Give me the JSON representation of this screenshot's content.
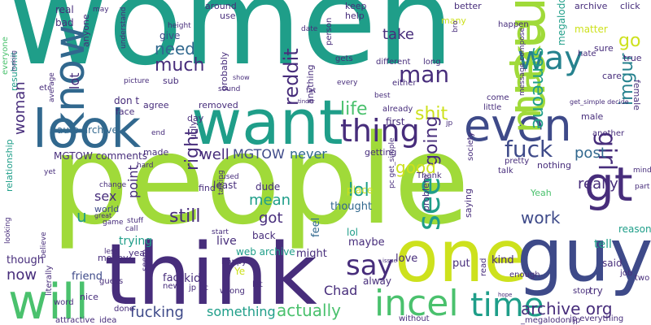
{
  "palette": {
    "teal": "#1f9e89",
    "lime": "#a0da39",
    "green": "#4ac16d",
    "indigo": "#3e4a89",
    "purple": "#472d7b",
    "blue": "#31688e",
    "cyan": "#26828e",
    "yellow": "#cde11d"
  },
  "words": [
    {
      "text": "women",
      "color": "teal"
    },
    {
      "text": "people",
      "color": "lime"
    },
    {
      "text": "think",
      "color": "purple"
    },
    {
      "text": "one",
      "color": "yellow"
    },
    {
      "text": "guy",
      "color": "indigo"
    },
    {
      "text": "want",
      "color": "teal"
    },
    {
      "text": "look",
      "color": "blue"
    },
    {
      "text": "men",
      "color": "lime"
    },
    {
      "text": "will",
      "color": "green"
    },
    {
      "text": "gt",
      "color": "purple"
    },
    {
      "text": "know",
      "color": "blue"
    },
    {
      "text": "even",
      "color": "indigo"
    },
    {
      "text": "make",
      "color": "lime"
    },
    {
      "text": "time",
      "color": "teal"
    },
    {
      "text": "incel",
      "color": "green"
    },
    {
      "text": "way",
      "color": "cyan"
    },
    {
      "text": "thing",
      "color": "purple"
    },
    {
      "text": "fuck",
      "color": "indigo"
    },
    {
      "text": "see",
      "color": "teal"
    },
    {
      "text": "girl",
      "color": "purple"
    },
    {
      "text": "say",
      "color": "purple"
    },
    {
      "text": "man",
      "color": "purple"
    },
    {
      "text": "someone",
      "color": "teal"
    },
    {
      "text": "shit",
      "color": "yellow"
    },
    {
      "text": "life",
      "color": "green"
    },
    {
      "text": "going",
      "color": "purple"
    },
    {
      "text": "reddit",
      "color": "purple"
    },
    {
      "text": "much",
      "color": "purple"
    },
    {
      "text": "need",
      "color": "blue"
    },
    {
      "text": "take",
      "color": "purple"
    },
    {
      "text": "lol",
      "color": "teal"
    },
    {
      "text": "good",
      "color": "yellow"
    },
    {
      "text": "right",
      "color": "purple"
    },
    {
      "text": "really",
      "color": "purple"
    },
    {
      "text": "work",
      "color": "indigo"
    },
    {
      "text": "post",
      "color": "blue"
    },
    {
      "text": "still",
      "color": "purple"
    },
    {
      "text": "well",
      "color": "purple"
    },
    {
      "text": "MGTOW",
      "color": "indigo"
    },
    {
      "text": "never",
      "color": "blue"
    },
    {
      "text": "imgur",
      "color": "cyan"
    },
    {
      "text": "go",
      "color": "yellow"
    },
    {
      "text": "archive org",
      "color": "purple"
    },
    {
      "text": "something",
      "color": "teal"
    },
    {
      "text": "actually",
      "color": "green"
    },
    {
      "text": "fucking",
      "color": "indigo"
    },
    {
      "text": "woman",
      "color": "purple"
    },
    {
      "text": "mean",
      "color": "teal"
    },
    {
      "text": "got",
      "color": "purple"
    },
    {
      "text": "point",
      "color": "purple"
    },
    {
      "text": "sex",
      "color": "purple"
    },
    {
      "text": "now",
      "color": "purple"
    },
    {
      "text": "lot",
      "color": "purple"
    },
    {
      "text": "Chad",
      "color": "purple"
    },
    {
      "text": "megalodon jp",
      "color": "teal"
    },
    {
      "text": "auto archive",
      "color": "blue"
    },
    {
      "text": "MGTOW comments",
      "color": "purple"
    },
    {
      "text": "relationship",
      "color": "teal"
    },
    {
      "text": "resubmit",
      "color": "teal"
    },
    {
      "text": "though",
      "color": "purple"
    },
    {
      "text": "u",
      "color": "teal"
    },
    {
      "text": "world",
      "color": "indigo"
    },
    {
      "text": "trying",
      "color": "teal"
    },
    {
      "text": "money",
      "color": "purple"
    },
    {
      "text": "friend",
      "color": "indigo"
    },
    {
      "text": "don t",
      "color": "purple"
    },
    {
      "text": "live",
      "color": "purple"
    },
    {
      "text": "web archive",
      "color": "teal"
    },
    {
      "text": "might",
      "color": "purple"
    },
    {
      "text": "feel",
      "color": "blue"
    },
    {
      "text": "thought",
      "color": "blue"
    },
    {
      "text": "love",
      "color": "purple"
    },
    {
      "text": "kind",
      "color": "purple"
    },
    {
      "text": "said",
      "color": "purple"
    },
    {
      "text": "tell",
      "color": "teal"
    },
    {
      "text": "reason",
      "color": "teal"
    },
    {
      "text": "put",
      "color": "purple"
    },
    {
      "text": "alway",
      "color": "purple"
    },
    {
      "text": "maybe",
      "color": "purple"
    },
    {
      "text": "kid",
      "color": "purple"
    },
    {
      "text": "fact",
      "color": "purple"
    },
    {
      "text": "dude",
      "color": "purple"
    },
    {
      "text": "least",
      "color": "purple"
    },
    {
      "text": "back",
      "color": "purple"
    },
    {
      "text": "place",
      "color": "yellow"
    },
    {
      "text": "lol",
      "color": "teal"
    },
    {
      "text": "first",
      "color": "purple"
    },
    {
      "text": "nothing",
      "color": "purple"
    },
    {
      "text": "Yeah",
      "color": "green"
    },
    {
      "text": "real",
      "color": "purple"
    },
    {
      "text": "bad",
      "color": "purple"
    },
    {
      "text": "give",
      "color": "indigo"
    },
    {
      "text": "around",
      "color": "purple"
    },
    {
      "text": "use",
      "color": "purple"
    },
    {
      "text": "keep",
      "color": "purple"
    },
    {
      "text": "help",
      "color": "purple"
    },
    {
      "text": "better",
      "color": "purple"
    },
    {
      "text": "many",
      "color": "yellow"
    },
    {
      "text": "archive",
      "color": "purple"
    },
    {
      "text": "click",
      "color": "purple"
    },
    {
      "text": "sure",
      "color": "purple"
    },
    {
      "text": "true",
      "color": "purple"
    },
    {
      "text": "care",
      "color": "purple"
    },
    {
      "text": "female",
      "color": "purple"
    },
    {
      "text": "male",
      "color": "purple"
    },
    {
      "text": "probably",
      "color": "purple"
    },
    {
      "text": "anything",
      "color": "purple"
    },
    {
      "text": "removed",
      "color": "purple"
    },
    {
      "text": "agree",
      "color": "purple"
    },
    {
      "text": "face",
      "color": "purple"
    },
    {
      "text": "day",
      "color": "purple"
    },
    {
      "text": "made",
      "color": "purple"
    },
    {
      "text": "find",
      "color": "purple"
    },
    {
      "text": "ugly",
      "color": "purple"
    },
    {
      "text": "getting",
      "color": "purple"
    },
    {
      "text": "problem",
      "color": "purple"
    },
    {
      "text": "saying",
      "color": "purple"
    },
    {
      "text": "everyone",
      "color": "green"
    },
    {
      "text": "anyone",
      "color": "purple"
    },
    {
      "text": "sub",
      "color": "purple"
    },
    {
      "text": "year",
      "color": "purple"
    },
    {
      "text": "etc",
      "color": "purple"
    },
    {
      "text": "hate",
      "color": "purple"
    },
    {
      "text": "happen",
      "color": "purple"
    },
    {
      "text": "matter",
      "color": "yellow"
    },
    {
      "text": "another",
      "color": "purple"
    },
    {
      "text": "already",
      "color": "purple"
    },
    {
      "text": "come",
      "color": "purple"
    },
    {
      "text": "little",
      "color": "purple"
    },
    {
      "text": "pretty",
      "color": "purple"
    },
    {
      "text": "talk",
      "color": "purple"
    },
    {
      "text": "stop",
      "color": "purple"
    },
    {
      "text": "try",
      "color": "purple"
    },
    {
      "text": "job",
      "color": "purple"
    },
    {
      "text": "two",
      "color": "purple"
    },
    {
      "text": "enough",
      "color": "purple"
    },
    {
      "text": "read",
      "color": "purple"
    },
    {
      "text": "_megalodon jp",
      "color": "purple"
    },
    {
      "text": "jp everything",
      "color": "purple"
    },
    {
      "text": "without",
      "color": "purple"
    },
    {
      "text": "attractive",
      "color": "purple"
    },
    {
      "text": "idea",
      "color": "purple"
    },
    {
      "text": "done",
      "color": "purple"
    },
    {
      "text": "nice",
      "color": "purple"
    },
    {
      "text": "guess",
      "color": "purple"
    },
    {
      "text": "seem",
      "color": "purple"
    },
    {
      "text": "new",
      "color": "purple"
    },
    {
      "text": "jp pc",
      "color": "purple"
    },
    {
      "text": "wrong",
      "color": "purple"
    },
    {
      "text": "happy",
      "color": "purple"
    },
    {
      "text": "let",
      "color": "purple"
    },
    {
      "text": "literally",
      "color": "purple"
    },
    {
      "text": "word",
      "color": "purple"
    },
    {
      "text": "Thank",
      "color": "purple"
    },
    {
      "text": "pc get_simple",
      "color": "purple"
    },
    {
      "text": "society",
      "color": "purple"
    },
    {
      "text": "best",
      "color": "purple"
    },
    {
      "text": "message compose",
      "color": "purple"
    },
    {
      "text": "get_simple decide",
      "color": "purple"
    },
    {
      "text": "different",
      "color": "purple"
    },
    {
      "text": "either",
      "color": "purple"
    },
    {
      "text": "long",
      "color": "purple"
    },
    {
      "text": "gets",
      "color": "purple"
    },
    {
      "text": "person",
      "color": "purple"
    },
    {
      "text": "date",
      "color": "purple"
    },
    {
      "text": "bro",
      "color": "purple"
    },
    {
      "text": "may",
      "color": "purple"
    },
    {
      "text": "understand",
      "color": "purple"
    },
    {
      "text": "height",
      "color": "purple"
    },
    {
      "text": "picture",
      "color": "purple"
    },
    {
      "text": "average",
      "color": "purple"
    },
    {
      "text": "making",
      "color": "purple"
    },
    {
      "text": "end",
      "color": "purple"
    },
    {
      "text": "hard",
      "color": "purple"
    },
    {
      "text": "change",
      "color": "purple"
    },
    {
      "text": "game",
      "color": "purple"
    },
    {
      "text": "call",
      "color": "purple"
    },
    {
      "text": "stuff",
      "color": "purple"
    },
    {
      "text": "yet",
      "color": "purple"
    },
    {
      "text": "believe",
      "color": "purple"
    },
    {
      "text": "looking",
      "color": "purple"
    },
    {
      "text": "great",
      "color": "purple"
    },
    {
      "text": "less",
      "color": "purple"
    },
    {
      "text": "start",
      "color": "purple"
    },
    {
      "text": "talking",
      "color": "purple"
    },
    {
      "text": "used",
      "color": "purple"
    },
    {
      "text": "sound",
      "color": "purple"
    },
    {
      "text": "show",
      "color": "purple"
    },
    {
      "text": "fat",
      "color": "purple"
    },
    {
      "text": "tinder",
      "color": "purple"
    },
    {
      "text": "every",
      "color": "purple"
    },
    {
      "text": "jp",
      "color": "purple"
    },
    {
      "text": "hope",
      "color": "purple"
    },
    {
      "text": "issue",
      "color": "purple"
    },
    {
      "text": "mind",
      "color": "purple"
    },
    {
      "text": "part",
      "color": "purple"
    },
    {
      "text": "Ye",
      "color": "yellow"
    }
  ]
}
